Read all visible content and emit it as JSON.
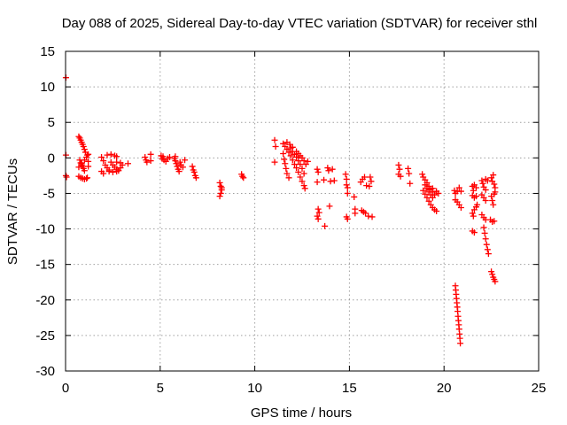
{
  "chart_data": {
    "type": "scatter",
    "title": "Day 088 of 2025, Sidereal Day-to-day VTEC variation (SDTVAR) for receiver sthl",
    "xlabel": "GPS time / hours",
    "ylabel": "SDTVAR / TECUs",
    "xlim": [
      0,
      25
    ],
    "ylim": [
      -30,
      15
    ],
    "xticks": [
      0,
      5,
      10,
      15,
      20,
      25
    ],
    "yticks": [
      15,
      10,
      5,
      0,
      -5,
      -10,
      -15,
      -20,
      -25,
      -30
    ],
    "xtick_labels": [
      "0",
      "5",
      "10",
      "15",
      "20",
      "25"
    ],
    "ytick_labels": [
      "15",
      "10",
      "5",
      "0",
      "-5",
      "-10",
      "-15",
      "-20",
      "-25",
      "-30"
    ],
    "grid": true,
    "marker": "plus",
    "series": [
      {
        "name": "SDTVAR",
        "color": "#ff0000",
        "points": [
          [
            0.02,
            11.3
          ],
          [
            0.02,
            0.4
          ],
          [
            0.02,
            -2.5
          ],
          [
            0.05,
            -2.7
          ],
          [
            0.7,
            3.0
          ],
          [
            0.75,
            2.8
          ],
          [
            0.8,
            2.5
          ],
          [
            0.85,
            2.2
          ],
          [
            0.9,
            1.9
          ],
          [
            0.95,
            1.6
          ],
          [
            1.0,
            1.2
          ],
          [
            1.05,
            0.8
          ],
          [
            0.75,
            -0.3
          ],
          [
            0.8,
            -0.7
          ],
          [
            0.85,
            -1.0
          ],
          [
            0.9,
            -1.2
          ],
          [
            0.95,
            -1.5
          ],
          [
            1.0,
            -1.8
          ],
          [
            0.7,
            -1.3
          ],
          [
            0.85,
            -0.8
          ],
          [
            1.0,
            -0.3
          ],
          [
            1.1,
            0.1
          ],
          [
            1.15,
            0.4
          ],
          [
            0.7,
            -2.6
          ],
          [
            0.8,
            -2.8
          ],
          [
            0.9,
            -2.9
          ],
          [
            1.0,
            -3.0
          ],
          [
            1.1,
            -2.9
          ],
          [
            1.15,
            -2.8
          ],
          [
            1.2,
            -1.2
          ],
          [
            1.2,
            -0.5
          ],
          [
            1.2,
            0.5
          ],
          [
            1.9,
            0.1
          ],
          [
            2.0,
            -0.4
          ],
          [
            2.1,
            -1.0
          ],
          [
            2.2,
            -1.4
          ],
          [
            2.3,
            -1.7
          ],
          [
            1.9,
            -1.9
          ],
          [
            2.0,
            -2.2
          ],
          [
            2.2,
            0.4
          ],
          [
            2.4,
            0.5
          ],
          [
            2.6,
            0.3
          ],
          [
            2.7,
            0.2
          ],
          [
            2.4,
            -0.6
          ],
          [
            2.5,
            -1.0
          ],
          [
            2.6,
            -1.3
          ],
          [
            2.7,
            -1.6
          ],
          [
            2.8,
            -1.8
          ],
          [
            2.3,
            -1.9
          ],
          [
            2.5,
            -2.0
          ],
          [
            2.7,
            -1.9
          ],
          [
            2.9,
            -1.4
          ],
          [
            3.0,
            -1.0
          ],
          [
            2.7,
            -0.6
          ],
          [
            2.9,
            -0.7
          ],
          [
            3.3,
            -0.8
          ],
          [
            4.2,
            0.1
          ],
          [
            4.25,
            -0.3
          ],
          [
            4.3,
            -0.6
          ],
          [
            4.5,
            0.5
          ],
          [
            4.5,
            -0.4
          ],
          [
            5.05,
            0.3
          ],
          [
            5.1,
            -0.1
          ],
          [
            5.2,
            -0.3
          ],
          [
            5.3,
            -0.5
          ],
          [
            5.4,
            -0.1
          ],
          [
            5.5,
            0.1
          ],
          [
            5.15,
            0.2
          ],
          [
            5.75,
            -0.1
          ],
          [
            5.8,
            -0.4
          ],
          [
            5.85,
            -0.8
          ],
          [
            5.9,
            -1.2
          ],
          [
            5.95,
            -1.6
          ],
          [
            6.0,
            -1.9
          ],
          [
            6.05,
            -0.6
          ],
          [
            6.1,
            -1.0
          ],
          [
            6.2,
            -1.3
          ],
          [
            5.8,
            0.2
          ],
          [
            6.3,
            -0.3
          ],
          [
            6.7,
            -1.2
          ],
          [
            6.75,
            -1.7
          ],
          [
            6.8,
            -2.0
          ],
          [
            6.85,
            -2.5
          ],
          [
            6.9,
            -2.8
          ],
          [
            8.15,
            -3.5
          ],
          [
            8.2,
            -4.0
          ],
          [
            8.25,
            -4.5
          ],
          [
            8.2,
            -5.0
          ],
          [
            8.15,
            -5.4
          ],
          [
            8.25,
            -4.2
          ],
          [
            9.3,
            -2.3
          ],
          [
            9.35,
            -2.6
          ],
          [
            9.4,
            -2.8
          ],
          [
            11.05,
            2.5
          ],
          [
            11.1,
            1.6
          ],
          [
            11.05,
            -0.6
          ],
          [
            11.5,
            2.0
          ],
          [
            11.6,
            1.6
          ],
          [
            11.7,
            1.2
          ],
          [
            11.8,
            0.8
          ],
          [
            11.9,
            0.3
          ],
          [
            12.0,
            -0.3
          ],
          [
            12.1,
            -0.9
          ],
          [
            12.2,
            -1.4
          ],
          [
            12.3,
            -2.0
          ],
          [
            12.4,
            -2.7
          ],
          [
            12.5,
            -3.3
          ],
          [
            12.6,
            -3.9
          ],
          [
            12.65,
            -4.3
          ],
          [
            11.5,
            0.6
          ],
          [
            11.55,
            -0.2
          ],
          [
            11.6,
            -0.8
          ],
          [
            11.65,
            -1.5
          ],
          [
            11.7,
            -2.2
          ],
          [
            11.8,
            -2.8
          ],
          [
            11.9,
            1.4
          ],
          [
            12.0,
            0.9
          ],
          [
            12.1,
            0.5
          ],
          [
            12.2,
            0.1
          ],
          [
            12.3,
            -0.4
          ],
          [
            12.4,
            -0.9
          ],
          [
            12.5,
            -1.5
          ],
          [
            12.6,
            -2.2
          ],
          [
            12.2,
            0.9
          ],
          [
            12.3,
            0.6
          ],
          [
            12.4,
            0.3
          ],
          [
            12.5,
            0.0
          ],
          [
            12.6,
            -0.4
          ],
          [
            12.7,
            -0.9
          ],
          [
            11.7,
            2.2
          ],
          [
            11.85,
            1.9
          ],
          [
            12.0,
            1.5
          ],
          [
            12.8,
            -0.5
          ],
          [
            13.3,
            -1.6
          ],
          [
            13.35,
            -2.0
          ],
          [
            13.3,
            -3.4
          ],
          [
            13.35,
            -7.2
          ],
          [
            13.4,
            -7.7
          ],
          [
            13.3,
            -8.2
          ],
          [
            13.35,
            -8.6
          ],
          [
            13.65,
            -3.1
          ],
          [
            13.7,
            -9.6
          ],
          [
            13.85,
            -1.4
          ],
          [
            13.9,
            -1.8
          ],
          [
            14.0,
            -3.3
          ],
          [
            13.95,
            -6.8
          ],
          [
            14.1,
            -1.6
          ],
          [
            14.2,
            -3.2
          ],
          [
            14.8,
            -2.3
          ],
          [
            14.85,
            -3.0
          ],
          [
            14.85,
            -3.8
          ],
          [
            14.9,
            -4.2
          ],
          [
            14.9,
            -5.0
          ],
          [
            14.85,
            -8.3
          ],
          [
            14.9,
            -8.6
          ],
          [
            15.25,
            -5.5
          ],
          [
            15.3,
            -7.2
          ],
          [
            15.3,
            -7.8
          ],
          [
            15.6,
            -3.4
          ],
          [
            15.7,
            -3.0
          ],
          [
            15.8,
            -2.7
          ],
          [
            15.9,
            -3.9
          ],
          [
            15.65,
            -7.4
          ],
          [
            15.75,
            -7.6
          ],
          [
            15.85,
            -7.8
          ],
          [
            16.0,
            -8.2
          ],
          [
            16.05,
            -4.0
          ],
          [
            16.1,
            -2.7
          ],
          [
            16.15,
            -3.3
          ],
          [
            16.2,
            -8.3
          ],
          [
            17.6,
            -1.0
          ],
          [
            17.65,
            -1.6
          ],
          [
            17.6,
            -2.3
          ],
          [
            17.7,
            -2.6
          ],
          [
            18.1,
            -1.5
          ],
          [
            18.15,
            -2.2
          ],
          [
            18.2,
            -3.6
          ],
          [
            18.85,
            -2.3
          ],
          [
            18.9,
            -2.7
          ],
          [
            19.0,
            -3.1
          ],
          [
            19.1,
            -3.5
          ],
          [
            19.2,
            -4.0
          ],
          [
            19.3,
            -4.4
          ],
          [
            19.4,
            -4.8
          ],
          [
            19.5,
            -5.2
          ],
          [
            19.0,
            -3.8
          ],
          [
            19.1,
            -4.3
          ],
          [
            19.2,
            -4.8
          ],
          [
            19.3,
            -5.2
          ],
          [
            19.4,
            -5.6
          ],
          [
            18.9,
            -4.6
          ],
          [
            19.0,
            -5.1
          ],
          [
            19.1,
            -5.6
          ],
          [
            19.2,
            -6.1
          ],
          [
            19.3,
            -6.6
          ],
          [
            19.4,
            -7.0
          ],
          [
            19.5,
            -7.3
          ],
          [
            19.6,
            -7.5
          ],
          [
            19.2,
            -4.5
          ],
          [
            19.4,
            -4.3
          ],
          [
            19.6,
            -4.7
          ],
          [
            19.7,
            -5.0
          ],
          [
            20.6,
            -18.0
          ],
          [
            20.62,
            -18.6
          ],
          [
            20.64,
            -19.2
          ],
          [
            20.66,
            -19.8
          ],
          [
            20.68,
            -20.4
          ],
          [
            20.7,
            -21.0
          ],
          [
            20.72,
            -21.6
          ],
          [
            20.74,
            -22.3
          ],
          [
            20.76,
            -22.9
          ],
          [
            20.78,
            -23.5
          ],
          [
            20.8,
            -24.1
          ],
          [
            20.82,
            -24.8
          ],
          [
            20.84,
            -25.4
          ],
          [
            20.86,
            -26.1
          ],
          [
            20.55,
            -4.6
          ],
          [
            20.6,
            -5.0
          ],
          [
            20.7,
            -4.7
          ],
          [
            20.8,
            -4.2
          ],
          [
            20.9,
            -4.7
          ],
          [
            20.6,
            -5.9
          ],
          [
            20.7,
            -6.2
          ],
          [
            20.8,
            -6.6
          ],
          [
            20.9,
            -7.0
          ],
          [
            21.5,
            -4.0
          ],
          [
            21.55,
            -4.6
          ],
          [
            21.6,
            -3.8
          ],
          [
            21.7,
            -4.2
          ],
          [
            21.5,
            -5.3
          ],
          [
            21.6,
            -5.6
          ],
          [
            21.7,
            -5.4
          ],
          [
            21.5,
            -7.8
          ],
          [
            21.6,
            -7.3
          ],
          [
            21.7,
            -6.9
          ],
          [
            21.75,
            -6.6
          ],
          [
            21.55,
            -8.2
          ],
          [
            21.5,
            -10.3
          ],
          [
            21.6,
            -10.5
          ],
          [
            22.0,
            -8.0
          ],
          [
            22.1,
            -8.4
          ],
          [
            22.2,
            -8.7
          ],
          [
            22.1,
            -9.8
          ],
          [
            22.15,
            -10.6
          ],
          [
            22.2,
            -11.4
          ],
          [
            22.25,
            -12.2
          ],
          [
            22.3,
            -12.9
          ],
          [
            22.35,
            -13.5
          ],
          [
            22.0,
            -3.2
          ],
          [
            22.05,
            -3.6
          ],
          [
            22.1,
            -4.1
          ],
          [
            22.2,
            -4.5
          ],
          [
            22.3,
            -3.2
          ],
          [
            22.2,
            -3.0
          ],
          [
            22.0,
            -5.2
          ],
          [
            22.1,
            -5.6
          ],
          [
            22.2,
            -6.0
          ],
          [
            22.45,
            -8.7
          ],
          [
            22.55,
            -9.0
          ],
          [
            22.65,
            -8.9
          ],
          [
            22.5,
            -2.8
          ],
          [
            22.55,
            -3.3
          ],
          [
            22.6,
            -2.4
          ],
          [
            22.65,
            -3.7
          ],
          [
            22.7,
            -4.2
          ],
          [
            22.5,
            -5.4
          ],
          [
            22.55,
            -6.0
          ],
          [
            22.6,
            -6.6
          ],
          [
            22.65,
            -5.1
          ],
          [
            22.7,
            -4.8
          ],
          [
            22.5,
            -16.0
          ],
          [
            22.55,
            -16.4
          ],
          [
            22.6,
            -16.8
          ],
          [
            22.65,
            -17.1
          ],
          [
            22.7,
            -17.4
          ]
        ]
      }
    ]
  }
}
